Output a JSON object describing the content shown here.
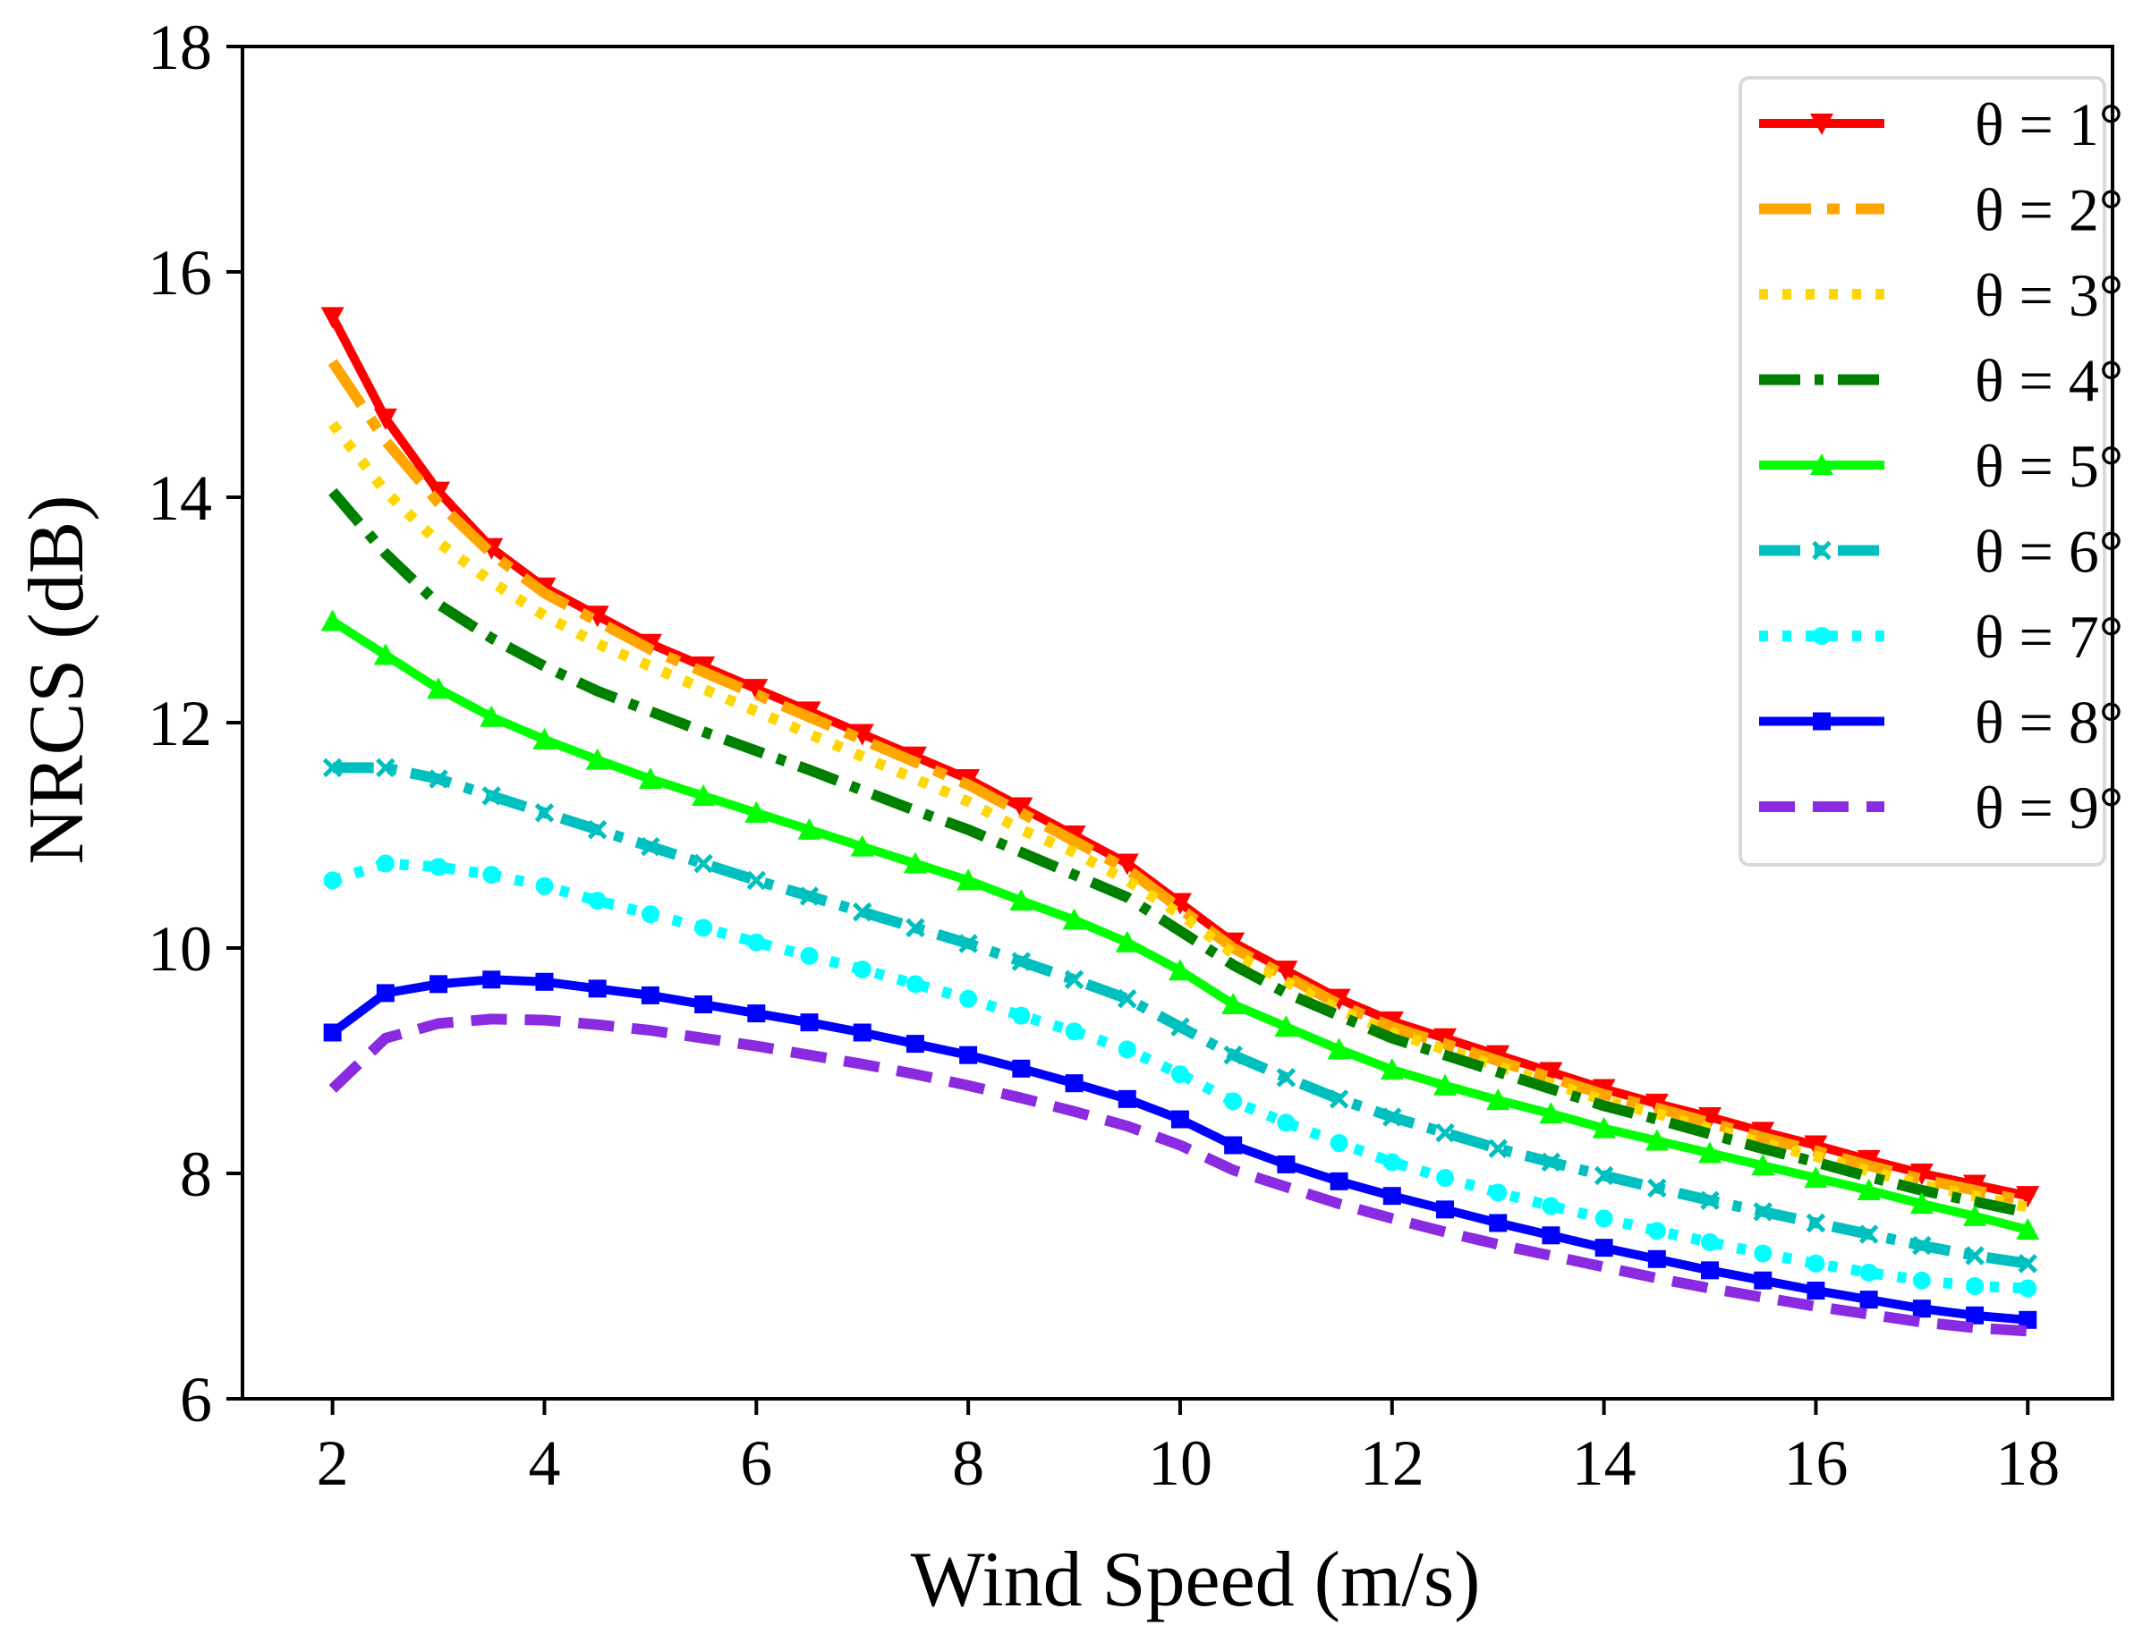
{
  "chart_data": {
    "type": "line",
    "title": "",
    "xlabel": "Wind Speed (m/s)",
    "ylabel": "NRCS (dB)",
    "xlim": [
      1.15,
      18.8
    ],
    "ylim": [
      6,
      18
    ],
    "xticks": [
      2,
      4,
      6,
      8,
      10,
      12,
      14,
      16,
      18
    ],
    "yticks": [
      6,
      8,
      10,
      12,
      14,
      16,
      18
    ],
    "xtick_labels": [
      "2",
      "4",
      "6",
      "8",
      "10",
      "12",
      "14",
      "16",
      "18"
    ],
    "ytick_labels": [
      "6",
      "8",
      "10",
      "12",
      "14",
      "16",
      "18"
    ],
    "grid": false,
    "legend_position": "top-right",
    "x": [
      2,
      2.5,
      3,
      3.5,
      4,
      4.5,
      5,
      5.5,
      6,
      6.5,
      7,
      7.5,
      8,
      8.5,
      9,
      9.5,
      10,
      10.5,
      11,
      11.5,
      12,
      12.5,
      13,
      13.5,
      14,
      14.5,
      15,
      15.5,
      16,
      16.5,
      17,
      17.5,
      18
    ],
    "series": [
      {
        "name": "θ = 1°",
        "color": "#ff0000",
        "dash": "solid",
        "marker": "triangle-down",
        "values": [
          15.6,
          14.7,
          14.05,
          13.55,
          13.2,
          12.95,
          12.7,
          12.5,
          12.3,
          12.1,
          11.9,
          11.7,
          11.5,
          11.25,
          11.0,
          10.75,
          10.4,
          10.05,
          9.8,
          9.55,
          9.35,
          9.2,
          9.05,
          8.9,
          8.75,
          8.62,
          8.5,
          8.37,
          8.25,
          8.12,
          8.0,
          7.9,
          7.8
        ]
      },
      {
        "name": "θ = 2°",
        "color": "#ffa500",
        "dash": "long-dash-dot",
        "marker": "none",
        "values": [
          15.2,
          14.5,
          13.95,
          13.5,
          13.15,
          12.9,
          12.65,
          12.45,
          12.25,
          12.05,
          11.85,
          11.65,
          11.45,
          11.2,
          10.95,
          10.7,
          10.35,
          10.0,
          9.75,
          9.5,
          9.3,
          9.15,
          9.0,
          8.85,
          8.7,
          8.58,
          8.45,
          8.32,
          8.2,
          8.07,
          7.95,
          7.85,
          7.75
        ]
      },
      {
        "name": "θ = 3°",
        "color": "#ffd700",
        "dash": "dotted",
        "marker": "none",
        "values": [
          14.65,
          14.05,
          13.6,
          13.25,
          12.95,
          12.7,
          12.5,
          12.3,
          12.1,
          11.9,
          11.7,
          11.5,
          11.3,
          11.05,
          10.85,
          10.6,
          10.3,
          9.95,
          9.7,
          9.45,
          9.25,
          9.1,
          8.95,
          8.8,
          8.65,
          8.53,
          8.4,
          8.27,
          8.15,
          8.02,
          7.9,
          7.8,
          7.7
        ]
      },
      {
        "name": "θ = 4°",
        "color": "#008000",
        "dash": "dash-dot",
        "marker": "none",
        "values": [
          14.05,
          13.5,
          13.05,
          12.75,
          12.5,
          12.28,
          12.1,
          11.92,
          11.75,
          11.58,
          11.4,
          11.22,
          11.05,
          10.85,
          10.65,
          10.45,
          10.15,
          9.85,
          9.6,
          9.4,
          9.2,
          9.05,
          8.9,
          8.75,
          8.6,
          8.48,
          8.35,
          8.22,
          8.1,
          7.97,
          7.85,
          7.75,
          7.65
        ]
      },
      {
        "name": "θ = 5°",
        "color": "#00ff00",
        "dash": "solid",
        "marker": "triangle-up",
        "values": [
          12.9,
          12.6,
          12.3,
          12.05,
          11.85,
          11.67,
          11.5,
          11.35,
          11.2,
          11.05,
          10.9,
          10.75,
          10.6,
          10.42,
          10.25,
          10.05,
          9.8,
          9.5,
          9.3,
          9.1,
          8.92,
          8.78,
          8.65,
          8.53,
          8.4,
          8.29,
          8.18,
          8.07,
          7.96,
          7.85,
          7.73,
          7.62,
          7.5
        ]
      },
      {
        "name": "θ = 6°",
        "color": "#00bfbf",
        "dash": "dash-dot",
        "marker": "x",
        "values": [
          11.6,
          11.6,
          11.5,
          11.35,
          11.2,
          11.05,
          10.9,
          10.75,
          10.6,
          10.46,
          10.32,
          10.18,
          10.04,
          9.88,
          9.72,
          9.55,
          9.3,
          9.05,
          8.85,
          8.66,
          8.5,
          8.36,
          8.22,
          8.1,
          7.98,
          7.87,
          7.76,
          7.66,
          7.56,
          7.46,
          7.36,
          7.27,
          7.2
        ]
      },
      {
        "name": "θ = 7°",
        "color": "#00ffff",
        "dash": "dotted",
        "marker": "circle",
        "values": [
          10.6,
          10.75,
          10.72,
          10.65,
          10.55,
          10.42,
          10.3,
          10.18,
          10.05,
          9.93,
          9.81,
          9.68,
          9.55,
          9.4,
          9.26,
          9.1,
          8.88,
          8.64,
          8.45,
          8.27,
          8.1,
          7.96,
          7.83,
          7.71,
          7.6,
          7.49,
          7.39,
          7.29,
          7.2,
          7.12,
          7.05,
          7.0,
          6.98
        ]
      },
      {
        "name": "θ = 8°",
        "color": "#0000ff",
        "dash": "solid",
        "marker": "square",
        "values": [
          9.25,
          9.6,
          9.68,
          9.72,
          9.7,
          9.64,
          9.58,
          9.5,
          9.42,
          9.34,
          9.25,
          9.15,
          9.05,
          8.93,
          8.8,
          8.66,
          8.48,
          8.25,
          8.08,
          7.93,
          7.8,
          7.68,
          7.56,
          7.45,
          7.34,
          7.24,
          7.14,
          7.05,
          6.96,
          6.88,
          6.8,
          6.74,
          6.7
        ]
      },
      {
        "name": "θ = 9°",
        "color": "#8a2be2",
        "dash": "dashed",
        "marker": "none",
        "values": [
          8.75,
          9.2,
          9.33,
          9.37,
          9.36,
          9.32,
          9.27,
          9.2,
          9.13,
          9.05,
          8.97,
          8.88,
          8.78,
          8.67,
          8.55,
          8.42,
          8.25,
          8.03,
          7.88,
          7.73,
          7.6,
          7.48,
          7.37,
          7.27,
          7.17,
          7.07,
          6.98,
          6.9,
          6.82,
          6.75,
          6.68,
          6.63,
          6.6
        ]
      }
    ]
  }
}
